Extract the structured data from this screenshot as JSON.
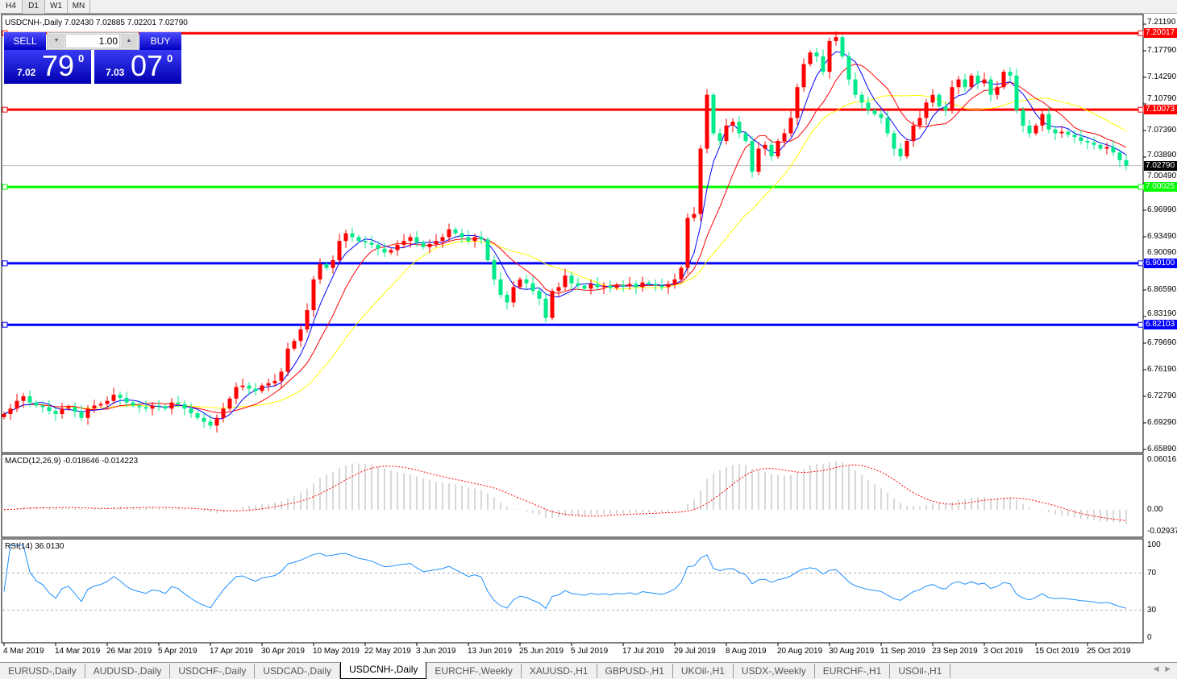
{
  "toolbar": {
    "timeframes": [
      "H4",
      "D1",
      "W1",
      "MN"
    ],
    "active": "D1"
  },
  "chart": {
    "title": "USDCNH-,Daily  7.02430 7.02885 7.02201 7.02790",
    "symbol": "USDCNH-,Daily"
  },
  "trade_panel": {
    "sell_label": "SELL",
    "buy_label": "BUY",
    "lot": "1.00",
    "sell_small": "7.02",
    "sell_large": "79",
    "sell_pip": "0",
    "buy_small": "7.03",
    "buy_large": "07",
    "buy_pip": "0"
  },
  "price_axis": [
    "7.21190",
    "7.17790",
    "7.14290",
    "7.10790",
    "7.07390",
    "7.03890",
    "7.00490",
    "6.96990",
    "6.93490",
    "6.90090",
    "6.86590",
    "6.83190",
    "6.79690",
    "6.76190",
    "6.72790",
    "6.69290",
    "6.65890"
  ],
  "colors": {
    "up": "#ff0000",
    "down": "#00e98a",
    "ma_fast": "#0000ff",
    "ma_mid": "#ff0000",
    "ma_slow": "#ffff00",
    "macd_hist": "#b0b0b0",
    "macd_signal": "#ff0000",
    "rsi": "#1e90ff"
  },
  "levels": [
    {
      "price": 7.20017,
      "label": "7.20017",
      "color": "#ff0000"
    },
    {
      "price": 7.10073,
      "label": "7.10073",
      "color": "#ff0000"
    },
    {
      "price": 7.00025,
      "label": "7.00025",
      "color": "#00ff00"
    },
    {
      "price": 6.901,
      "label": "6.90100",
      "color": "#0000ff"
    },
    {
      "price": 6.82103,
      "label": "6.82103",
      "color": "#0000ff"
    }
  ],
  "current_price": {
    "price": 7.0279,
    "label": "7.02790"
  },
  "macd": {
    "label": "MACD(12,26,9) -0.018646 -0.014223",
    "axis": [
      "0.060161",
      "0.00",
      "-0.029378"
    ],
    "range": [
      -0.029378,
      0.060161
    ]
  },
  "rsi": {
    "label": "RSI(14) 36.0130",
    "axis": [
      "100",
      "70",
      "30",
      "0"
    ],
    "levels": [
      70,
      30
    ]
  },
  "chart_data": {
    "type": "candlestick",
    "price_range": [
      6.6589,
      7.2119
    ],
    "moving_averages": [
      5,
      10,
      20
    ],
    "closes": [
      6.705,
      6.712,
      6.722,
      6.728,
      6.72,
      6.716,
      6.714,
      6.709,
      6.705,
      6.712,
      6.714,
      6.708,
      6.7,
      6.712,
      6.716,
      6.718,
      6.722,
      6.73,
      6.726,
      6.72,
      6.716,
      6.714,
      6.712,
      6.716,
      6.715,
      6.712,
      6.72,
      6.718,
      6.712,
      6.706,
      6.7,
      6.695,
      6.69,
      6.7,
      6.712,
      6.725,
      6.74,
      6.742,
      6.738,
      6.735,
      6.742,
      6.745,
      6.748,
      6.76,
      6.79,
      6.8,
      6.815,
      6.84,
      6.88,
      6.9,
      6.895,
      6.905,
      6.93,
      6.94,
      6.935,
      6.93,
      6.928,
      6.925,
      6.92,
      6.915,
      6.918,
      6.925,
      6.93,
      6.935,
      6.928,
      6.922,
      6.926,
      6.93,
      6.935,
      6.945,
      6.94,
      6.935,
      6.93,
      6.935,
      6.932,
      6.905,
      6.88,
      6.86,
      6.85,
      6.87,
      6.88,
      6.875,
      6.865,
      6.855,
      6.83,
      6.865,
      6.87,
      6.885,
      6.875,
      6.872,
      6.868,
      6.874,
      6.87,
      6.872,
      6.869,
      6.873,
      6.871,
      6.874,
      6.87,
      6.876,
      6.874,
      6.872,
      6.87,
      6.874,
      6.88,
      6.895,
      6.96,
      6.965,
      7.05,
      7.12,
      7.07,
      7.06,
      7.08,
      7.085,
      7.07,
      7.06,
      7.02,
      7.05,
      7.055,
      7.04,
      7.06,
      7.07,
      7.09,
      7.13,
      7.16,
      7.175,
      7.17,
      7.15,
      7.19,
      7.195,
      7.17,
      7.14,
      7.12,
      7.11,
      7.1,
      7.095,
      7.09,
      7.07,
      7.05,
      7.04,
      7.06,
      7.08,
      7.09,
      7.11,
      7.12,
      7.105,
      7.1,
      7.13,
      7.14,
      7.13,
      7.145,
      7.135,
      7.14,
      7.12,
      7.13,
      7.15,
      7.145,
      7.1,
      7.08,
      7.07,
      7.08,
      7.095,
      7.075,
      7.07,
      7.072,
      7.068,
      7.065,
      7.06,
      7.058,
      7.055,
      7.05,
      7.052,
      7.045,
      7.035,
      7.028
    ],
    "x_labels": [
      "4 Mar 2019",
      "14 Mar 2019",
      "26 Mar 2019",
      "5 Apr 2019",
      "17 Apr 2019",
      "30 Apr 2019",
      "10 May 2019",
      "22 May 2019",
      "3 Jun 2019",
      "13 Jun 2019",
      "25 Jun 2019",
      "5 Jul 2019",
      "17 Jul 2019",
      "29 Jul 2019",
      "8 Aug 2019",
      "20 Aug 2019",
      "30 Aug 2019",
      "11 Sep 2019",
      "23 Sep 2019",
      "3 Oct 2019",
      "15 Oct 2019",
      "25 Oct 2019"
    ]
  },
  "tabs": [
    "EURUSD-,Daily",
    "AUDUSD-,Daily",
    "USDCHF-,Daily",
    "USDCAD-,Daily",
    "USDCNH-,Daily",
    "EURCHF-,Weekly",
    "XAUUSD-,H1",
    "GBPUSD-,H1",
    "UKOil-,H1",
    "USDX-,Weekly",
    "EURCHF-,H1",
    "USOil-,H1"
  ],
  "active_tab": "USDCNH-,Daily"
}
